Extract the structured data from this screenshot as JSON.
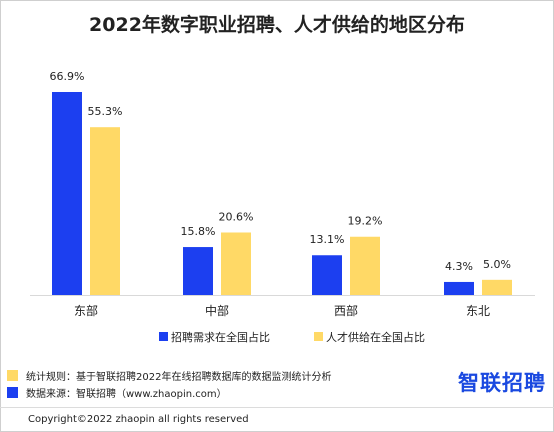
{
  "chart_data": {
    "type": "bar",
    "title": "2022年数字职业招聘、人才供给的地区分布",
    "categories": [
      "东部",
      "中部",
      "西部",
      "东北"
    ],
    "series": [
      {
        "name": "招聘需求在全国占比",
        "values": [
          66.9,
          15.8,
          13.1,
          4.3
        ],
        "labels": [
          "66.9%",
          "15.8%",
          "13.1%",
          "4.3%"
        ],
        "color": "#1c3ff0"
      },
      {
        "name": "人才供给在全国占比",
        "values": [
          55.3,
          20.6,
          19.2,
          5.0
        ],
        "labels": [
          "55.3%",
          "20.6%",
          "19.2%",
          "5.0%"
        ],
        "color": "#ffd966"
      }
    ],
    "ylim": [
      0,
      70
    ],
    "grid": false,
    "legend_position": "bottom"
  },
  "footer": {
    "note1": "统计规则：基于智联招聘2022年在线招聘数据库的数据监测统计分析",
    "note1_color": "#ffd966",
    "note2": "数据来源：智联招聘（www.zhaopin.com）",
    "note2_color": "#1c3ff0",
    "brand": "智联招聘",
    "copyright": "Copyright©2022 zhaopin all rights reserved"
  }
}
